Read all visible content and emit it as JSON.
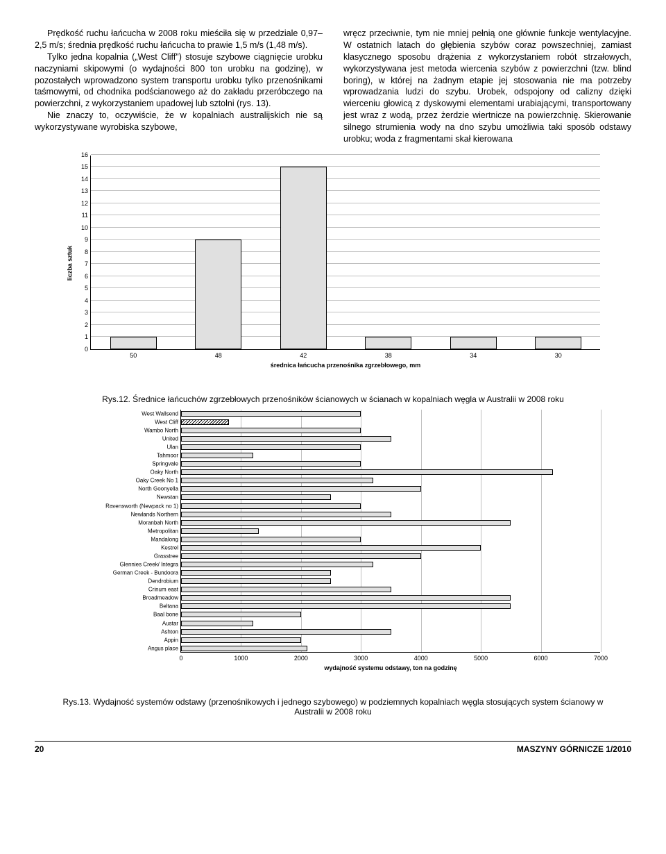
{
  "text": {
    "left": {
      "p1": "Prędkość ruchu łańcucha w 2008 roku mieściła się w przedziale 0,97–2,5 m/s; średnia prędkość ruchu łańcucha to prawie 1,5 m/s (1,48 m/s).",
      "p2": "Tylko jedna kopalnia („West Cliff\") stosuje szybowe ciągnięcie urobku naczyniami skipowymi (o wydajności 800 ton urobku na godzinę), w pozostałych wprowadzono system transportu urobku tylko przenośnikami taśmowymi, od chodnika podścianowego aż do zakładu przeróbczego na powierzchni, z wykorzystaniem upadowej lub sztolni (rys. 13).",
      "p3": "Nie znaczy to, oczywiście, że w kopalniach australijskich nie są wykorzystywane wyrobiska szybowe,"
    },
    "right": {
      "p1": "wręcz przeciwnie, tym nie mniej pełnią one głównie funkcje wentylacyjne. W ostatnich latach do głębienia szybów coraz powszechniej, zamiast klasycznego sposobu drążenia z wykorzystaniem robót strzałowych, wykorzystywana jest metoda wiercenia szybów z powierzchni (tzw. blind boring), w której na żadnym etapie jej stosowania nie ma potrzeby wprowadzania ludzi do szybu. Urobek, odspojony od calizny dzięki wierceniu głowicą z dyskowymi elementami urabiającymi, transportowany jest wraz z wodą, przez żerdzie wiertnicze na powierzchnię. Skierowanie silnego strumienia wody na dno szybu umożliwia taki sposób odstawy urobku; woda z fragmentami skał kierowana"
    }
  },
  "chart1": {
    "ylabel": "liczba sztuk",
    "xlabel": "średnica łańcucha przenośnika zgrzebłowego, mm",
    "ymax": 16,
    "ytick_step": 1,
    "categories": [
      "50",
      "48",
      "42",
      "38",
      "34",
      "30"
    ],
    "values": [
      1,
      9,
      15,
      1,
      1,
      1
    ],
    "bar_color": "#e0e0e0",
    "grid_color": "#bfbfbf"
  },
  "caption1": "Rys.12. Średnice łańcuchów zgrzebłowych przenośników ścianowych w ścianach w kopalniach węgla w Australii w 2008 roku",
  "chart2": {
    "xlabel": "wydajność systemu odstawy, ton na godzinę",
    "xmax": 7000,
    "xtick_step": 1000,
    "grid_color": "#bfbfbf",
    "bar_color": "#e0e0e0",
    "items": [
      {
        "label": "West Wallsend",
        "value": 3000
      },
      {
        "label": "West Cliff",
        "value": 800,
        "hatched": true
      },
      {
        "label": "Wambo North",
        "value": 3000
      },
      {
        "label": "United",
        "value": 3500
      },
      {
        "label": "Ulan",
        "value": 3000
      },
      {
        "label": "Tahmoor",
        "value": 1200
      },
      {
        "label": "Springvale",
        "value": 3000
      },
      {
        "label": "Oaky North",
        "value": 6200
      },
      {
        "label": "Oaky Creek No 1",
        "value": 3200
      },
      {
        "label": "North Goonyella",
        "value": 4000
      },
      {
        "label": "Newstan",
        "value": 2500
      },
      {
        "label": "Ravensworth (Newpack no 1)",
        "value": 3000
      },
      {
        "label": "Newlands Northern",
        "value": 3500
      },
      {
        "label": "Moranbah North",
        "value": 5500
      },
      {
        "label": "Metropolitan",
        "value": 1300
      },
      {
        "label": "Mandalong",
        "value": 3000
      },
      {
        "label": "Kestrel",
        "value": 5000
      },
      {
        "label": "Grasstree",
        "value": 4000
      },
      {
        "label": "Glennies Creek/ Integra",
        "value": 3200
      },
      {
        "label": "German Creek - Bundoora",
        "value": 2500
      },
      {
        "label": "Dendrobium",
        "value": 2500
      },
      {
        "label": "Crinum east",
        "value": 3500
      },
      {
        "label": "Broadmeadow",
        "value": 5500
      },
      {
        "label": "Beltana",
        "value": 5500
      },
      {
        "label": "Baal bone",
        "value": 2000
      },
      {
        "label": "Austar",
        "value": 1200
      },
      {
        "label": "Ashton",
        "value": 3500
      },
      {
        "label": "Appin",
        "value": 2000
      },
      {
        "label": "Angus place",
        "value": 2100
      }
    ]
  },
  "caption2": "Rys.13. Wydajność systemów odstawy (przenośnikowych i jednego szybowego) w podziemnych kopalniach węgla stosujących system ścianowy w Australii w 2008 roku",
  "footer": {
    "page": "20",
    "journal": "MASZYNY GÓRNICZE 1/2010"
  }
}
